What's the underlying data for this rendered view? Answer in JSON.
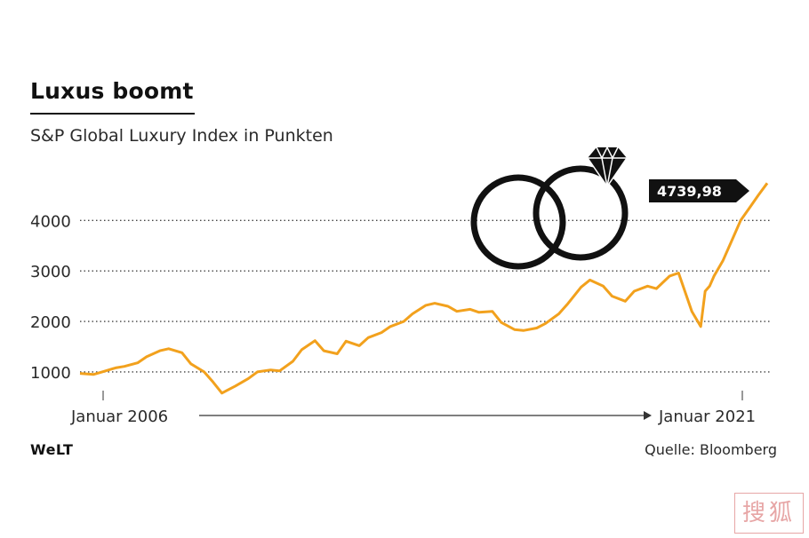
{
  "title": "Luxus boomt",
  "subtitle": "S&P Global Luxury Index in Punkten",
  "source": "Quelle: Bloomberg",
  "brand": "WeLT",
  "watermark": "搜狐",
  "colors": {
    "line": "#f2a11d",
    "text": "#2a2a2a",
    "badge_bg": "#111111",
    "icon": "#111111"
  },
  "icons": [
    "diamond-ring-icon"
  ],
  "chart_data": {
    "type": "line",
    "title": "Luxus boomt",
    "subtitle": "S&P Global Luxury Index in Punkten",
    "xlabel": "",
    "ylabel": "",
    "x_start_label": "Januar 2006",
    "x_end_label": "Januar 2021",
    "x_range": [
      2006.0,
      2021.6
    ],
    "ylim": [
      700,
      4850
    ],
    "yticks": [
      1000,
      2000,
      3000,
      4000
    ],
    "ytick_labels": [
      "1000",
      "2000",
      "3000",
      "4000"
    ],
    "grid": "dotted horizontal",
    "last_value_label": "4739,98",
    "series": [
      {
        "name": "S&P Global Luxury Index",
        "x": [
          2006.0,
          2006.3,
          2006.5,
          2006.8,
          2007.0,
          2007.3,
          2007.5,
          2007.8,
          2008.0,
          2008.3,
          2008.5,
          2008.8,
          2009.0,
          2009.2,
          2009.5,
          2009.8,
          2010.0,
          2010.3,
          2010.5,
          2010.8,
          2011.0,
          2011.3,
          2011.5,
          2011.8,
          2012.0,
          2012.3,
          2012.5,
          2012.8,
          2013.0,
          2013.3,
          2013.5,
          2013.8,
          2014.0,
          2014.3,
          2014.5,
          2014.8,
          2015.0,
          2015.3,
          2015.5,
          2015.8,
          2016.0,
          2016.3,
          2016.5,
          2016.8,
          2017.0,
          2017.3,
          2017.5,
          2017.8,
          2018.0,
          2018.3,
          2018.5,
          2018.8,
          2019.0,
          2019.3,
          2019.5,
          2019.8,
          2020.0,
          2020.1,
          2020.2,
          2020.3,
          2020.5,
          2020.7,
          2020.9,
          2021.1,
          2021.3,
          2021.5
        ],
        "values": [
          970,
          950,
          1000,
          1080,
          1110,
          1180,
          1300,
          1420,
          1460,
          1380,
          1160,
          1000,
          800,
          580,
          720,
          870,
          1000,
          1040,
          1020,
          1210,
          1440,
          1620,
          1420,
          1360,
          1610,
          1520,
          1680,
          1780,
          1900,
          2000,
          2150,
          2320,
          2360,
          2300,
          2200,
          2240,
          2180,
          2200,
          1980,
          1840,
          1820,
          1870,
          1960,
          2150,
          2350,
          2680,
          2820,
          2700,
          2500,
          2400,
          2600,
          2700,
          2650,
          2900,
          2960,
          2200,
          1900,
          2600,
          2700,
          2900,
          3200,
          3600,
          4000,
          4250,
          4500,
          4740
        ]
      }
    ]
  }
}
